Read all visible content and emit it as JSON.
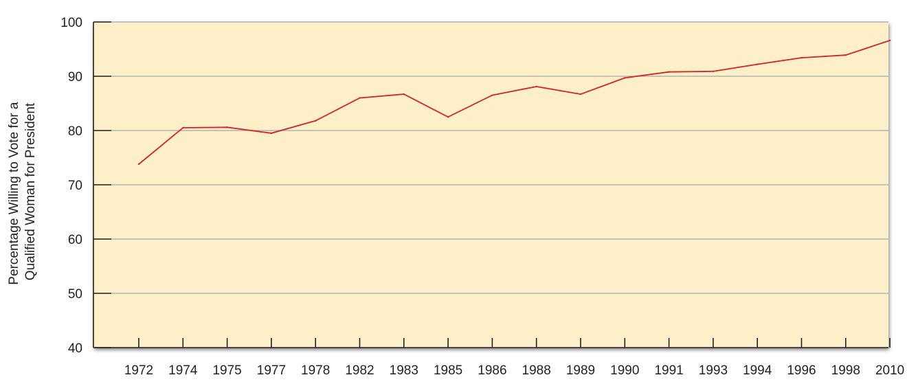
{
  "chart_data": {
    "type": "line",
    "title": "",
    "xlabel": "",
    "ylabel_lines": [
      "Percentage Willing to Vote for a",
      "Qualified Woman for President"
    ],
    "ylim": [
      40,
      100
    ],
    "yticks": [
      40,
      50,
      60,
      70,
      80,
      90,
      100
    ],
    "grid": true,
    "categories": [
      "1972",
      "1974",
      "1975",
      "1977",
      "1978",
      "1982",
      "1983",
      "1985",
      "1986",
      "1988",
      "1989",
      "1990",
      "1991",
      "1993",
      "1994",
      "1996",
      "1998",
      "2010"
    ],
    "series": [
      {
        "values": [
          73.8,
          80.5,
          80.6,
          79.5,
          81.8,
          86.0,
          86.7,
          82.5,
          86.5,
          88.1,
          86.7,
          89.7,
          90.8,
          90.9,
          92.2,
          93.4,
          93.9,
          96.6
        ]
      }
    ],
    "colors": {
      "plot_background": "#fdefc8",
      "line": "#d2232a",
      "grid": "#a6a6a6",
      "axis": "#231f20"
    }
  }
}
